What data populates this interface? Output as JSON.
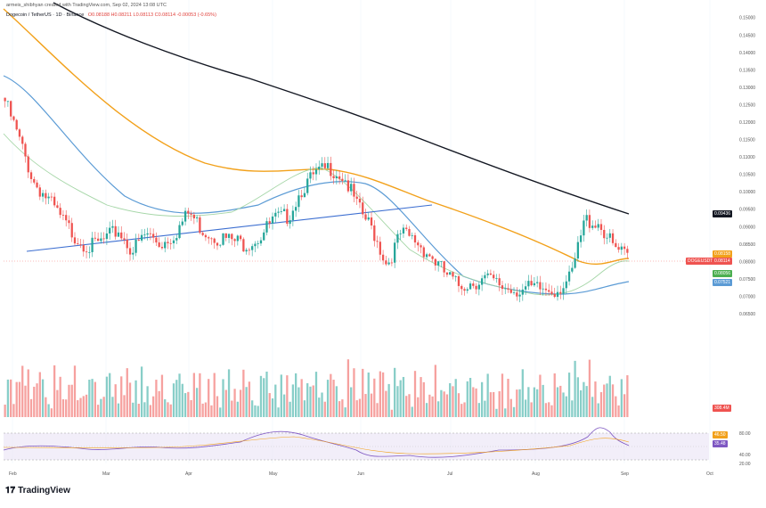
{
  "header": {
    "author_line": "armeis_shibhyan created with TradingView.com, Sep 02, 2024 13:08 UTC",
    "symbol_line": "Dogecoin / TetherUS · 1D · Binance",
    "ohlc_line": "O0.08188 H0.08211 L0.08113 C0.08114 -0.00053 (-0.65%)"
  },
  "price_tags": {
    "ma_black": "0.09436",
    "ma_orange": "0.08158",
    "symbol": "DOGEUSDT",
    "last_price": "0.08114",
    "ma_green": "0.08056",
    "ma_blue": "0.07521",
    "volume": "308.4M"
  },
  "rsi_tags": {
    "rsi_orange": "46.50",
    "rsi_purple": "35.48"
  },
  "footer": {
    "logo": "TradingView"
  },
  "colors": {
    "up": "#26a69a",
    "down": "#ef5350",
    "ma_black": "#131722",
    "ma_orange": "#f2a11b",
    "ma_blue": "#5b9bd5",
    "ma_green": "#a5d6a7",
    "trendline": "#3d6fd1",
    "rsi": "#7e57c2"
  },
  "chart_data": [
    {
      "type": "line",
      "title": "Dogecoin / TetherUS · 1D · Binance",
      "x_labels": [
        "Feb",
        "Mar",
        "Apr",
        "May",
        "Jun",
        "Jul",
        "Aug",
        "Sep",
        "Oct"
      ],
      "y_tick_labels": [
        "0.15000",
        "0.14500",
        "0.14000",
        "0.13500",
        "0.13000",
        "0.12500",
        "0.12000",
        "0.11500",
        "0.11000",
        "0.10500",
        "0.10000",
        "0.09500",
        "0.09000",
        "0.08500",
        "0.08000",
        "0.07500",
        "0.07000",
        "0.06500"
      ],
      "ylim": [
        0.065,
        0.153
      ],
      "series": [
        {
          "name": "",
          "values": [
            0.126,
            0.115,
            0.103,
            0.098,
            0.092,
            0.087,
            0.084,
            0.086,
            0.089,
            0.083,
            0.088,
            0.085,
            0.088,
            0.094,
            0.089,
            0.087,
            0.086,
            0.085,
            0.087,
            0.092,
            0.093,
            0.101,
            0.105,
            0.107,
            0.104,
            0.095,
            0.089,
            0.079,
            0.088,
            0.086,
            0.082,
            0.077,
            0.073,
            0.074,
            0.075,
            0.073,
            0.072,
            0.072,
            0.072,
            0.072,
            0.075,
            0.092,
            0.091,
            0.084,
            0.081
          ]
        }
      ]
    },
    {
      "type": "bar",
      "title": "Volume",
      "ylim": [
        0,
        1
      ]
    },
    {
      "type": "line",
      "title": "RSI",
      "y_tick_labels": [
        "80.00",
        "40.00",
        "20.00"
      ],
      "ylim": [
        20,
        85
      ]
    }
  ]
}
